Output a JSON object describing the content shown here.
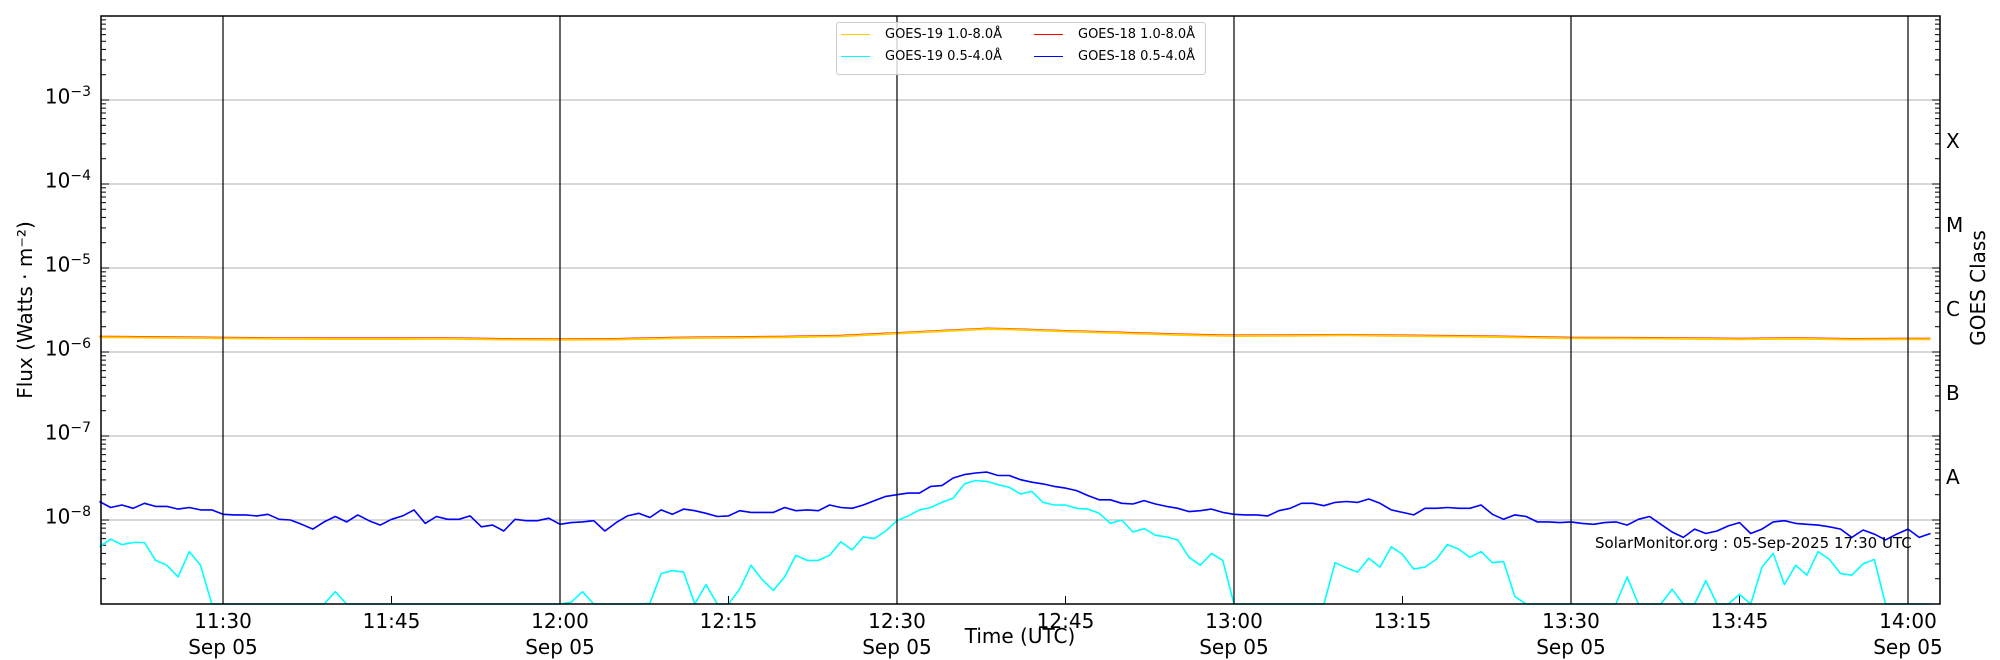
{
  "chart_data": {
    "type": "line",
    "xlabel": "Time (UTC)",
    "ylabel": "Flux (Watts · m⁻²)",
    "y2label": "GOES Class",
    "yscale": "log",
    "ylim": [
      1e-09,
      0.01
    ],
    "xlim": [
      "11:19",
      "14:03"
    ],
    "grid": "horizontal at decades",
    "legend_position": "top-center",
    "y_ticks": [
      {
        "base": "10",
        "exp": "−3",
        "value": 0.001
      },
      {
        "base": "10",
        "exp": "−4",
        "value": 0.0001
      },
      {
        "base": "10",
        "exp": "−5",
        "value": 1e-05
      },
      {
        "base": "10",
        "exp": "−6",
        "value": 1e-06
      },
      {
        "base": "10",
        "exp": "−7",
        "value": 1e-07
      },
      {
        "base": "10",
        "exp": "−8",
        "value": 1e-08
      }
    ],
    "x_ticks": [
      {
        "time": "11:30",
        "label": "11:30",
        "date": "Sep 05",
        "major": true
      },
      {
        "time": "11:45",
        "label": "11:45",
        "date": "",
        "major": false
      },
      {
        "time": "12:00",
        "label": "12:00",
        "date": "Sep 05",
        "major": true
      },
      {
        "time": "12:15",
        "label": "12:15",
        "date": "",
        "major": false
      },
      {
        "time": "12:30",
        "label": "12:30",
        "date": "Sep 05",
        "major": true
      },
      {
        "time": "12:45",
        "label": "12:45",
        "date": "",
        "major": false
      },
      {
        "time": "13:00",
        "label": "13:00",
        "date": "Sep 05",
        "major": true
      },
      {
        "time": "13:15",
        "label": "13:15",
        "date": "",
        "major": false
      },
      {
        "time": "13:30",
        "label": "13:30",
        "date": "Sep 05",
        "major": true
      },
      {
        "time": "13:45",
        "label": "13:45",
        "date": "",
        "major": false
      },
      {
        "time": "14:00",
        "label": "14:00",
        "date": "Sep 05",
        "major": true
      }
    ],
    "goes_classes": [
      {
        "label": "X",
        "from": 0.0001,
        "to": 0.001
      },
      {
        "label": "M",
        "from": 1e-05,
        "to": 0.0001
      },
      {
        "label": "C",
        "from": 1e-06,
        "to": 1e-05
      },
      {
        "label": "B",
        "from": 1e-07,
        "to": 1e-06
      },
      {
        "label": "A",
        "from": 1e-08,
        "to": 1e-07
      }
    ],
    "long_channel_x": [
      "11:19",
      "11:25",
      "11:30",
      "11:35",
      "11:40",
      "11:45",
      "11:50",
      "11:55",
      "12:00",
      "12:05",
      "12:10",
      "12:15",
      "12:20",
      "12:25",
      "12:30",
      "12:35",
      "12:38",
      "12:40",
      "12:45",
      "12:50",
      "12:55",
      "13:00",
      "13:05",
      "13:10",
      "13:15",
      "13:20",
      "13:25",
      "13:30",
      "13:35",
      "13:40",
      "13:45",
      "13:50",
      "13:55",
      "14:00",
      "14:02"
    ],
    "short_channel_x": [
      "11:19",
      "11:20",
      "11:21",
      "11:22",
      "11:23",
      "11:24",
      "11:25",
      "11:26",
      "11:27",
      "11:28",
      "11:29",
      "11:30",
      "11:31",
      "11:32",
      "11:33",
      "11:34",
      "11:35",
      "11:36",
      "11:37",
      "11:38",
      "11:39",
      "11:40",
      "11:41",
      "11:42",
      "11:43",
      "11:44",
      "11:45",
      "11:46",
      "11:47",
      "11:48",
      "11:49",
      "11:50",
      "11:51",
      "11:52",
      "11:53",
      "11:54",
      "11:55",
      "11:56",
      "11:57",
      "11:58",
      "11:59",
      "12:00",
      "12:01",
      "12:02",
      "12:03",
      "12:04",
      "12:05",
      "12:06",
      "12:07",
      "12:08",
      "12:09",
      "12:10",
      "12:11",
      "12:12",
      "12:13",
      "12:14",
      "12:15",
      "12:16",
      "12:17",
      "12:18",
      "12:19",
      "12:20",
      "12:21",
      "12:22",
      "12:23",
      "12:24",
      "12:25",
      "12:26",
      "12:27",
      "12:28",
      "12:29",
      "12:30",
      "12:31",
      "12:32",
      "12:33",
      "12:34",
      "12:35",
      "12:36",
      "12:37",
      "12:38",
      "12:39",
      "12:40",
      "12:41",
      "12:42",
      "12:43",
      "12:44",
      "12:45",
      "12:46",
      "12:47",
      "12:48",
      "12:49",
      "12:50",
      "12:51",
      "12:52",
      "12:53",
      "12:54",
      "12:55",
      "12:56",
      "12:57",
      "12:58",
      "12:59",
      "13:00",
      "13:01",
      "13:02",
      "13:03",
      "13:04",
      "13:05",
      "13:06",
      "13:07",
      "13:08",
      "13:09",
      "13:10",
      "13:11",
      "13:12",
      "13:13",
      "13:14",
      "13:15",
      "13:16",
      "13:17",
      "13:18",
      "13:19",
      "13:20",
      "13:21",
      "13:22",
      "13:23",
      "13:24",
      "13:25",
      "13:26",
      "13:27",
      "13:28",
      "13:29",
      "13:30",
      "13:31",
      "13:32",
      "13:33",
      "13:34",
      "13:35",
      "13:36",
      "13:37",
      "13:38",
      "13:39",
      "13:40",
      "13:41",
      "13:42",
      "13:43",
      "13:44",
      "13:45",
      "13:46",
      "13:47",
      "13:48",
      "13:49",
      "13:50",
      "13:51",
      "13:52",
      "13:53",
      "13:54",
      "13:55",
      "13:56",
      "13:57",
      "13:58",
      "13:59",
      "14:00",
      "14:01",
      "14:02"
    ],
    "series": [
      {
        "name": "GOES-19 1.0-8.0Å",
        "color": "#ffcc00",
        "x_key": "long_channel_x",
        "values": [
          1.5e-06,
          1.48e-06,
          1.46e-06,
          1.44e-06,
          1.43e-06,
          1.43e-06,
          1.44e-06,
          1.41e-06,
          1.4e-06,
          1.41e-06,
          1.46e-06,
          1.48e-06,
          1.5e-06,
          1.54e-06,
          1.66e-06,
          1.8e-06,
          1.88e-06,
          1.86e-06,
          1.76e-06,
          1.68e-06,
          1.6e-06,
          1.55e-06,
          1.56e-06,
          1.58e-06,
          1.55e-06,
          1.53e-06,
          1.5e-06,
          1.46e-06,
          1.45e-06,
          1.44e-06,
          1.42e-06,
          1.44e-06,
          1.41e-06,
          1.42e-06,
          1.42e-06
        ]
      },
      {
        "name": "GOES-18 1.0-8.0Å",
        "color": "#ff0000",
        "x_key": "long_channel_x",
        "values": [
          1.52e-06,
          1.5e-06,
          1.48e-06,
          1.46e-06,
          1.45e-06,
          1.45e-06,
          1.46e-06,
          1.43e-06,
          1.42e-06,
          1.43e-06,
          1.48e-06,
          1.5e-06,
          1.52e-06,
          1.56e-06,
          1.68e-06,
          1.82e-06,
          1.9e-06,
          1.88e-06,
          1.78e-06,
          1.7e-06,
          1.62e-06,
          1.57e-06,
          1.58e-06,
          1.6e-06,
          1.57e-06,
          1.55e-06,
          1.52e-06,
          1.48e-06,
          1.47e-06,
          1.46e-06,
          1.44e-06,
          1.46e-06,
          1.43e-06,
          1.44e-06,
          1.44e-06
        ]
      },
      {
        "name": "GOES-19 0.5-4.0Å",
        "color": "#00ffff",
        "x_key": "short_channel_x",
        "values": [
          4.8e-09,
          5.9e-09,
          5.1e-09,
          5.4e-09,
          5.4e-09,
          3.3e-09,
          2.9e-09,
          2.1e-09,
          4.2e-09,
          2.9e-09,
          1e-09,
          1e-09,
          1e-09,
          1e-09,
          1e-09,
          1e-09,
          1e-09,
          1e-09,
          1e-09,
          1e-09,
          1e-09,
          1.4e-09,
          1e-09,
          1e-09,
          1e-09,
          1e-09,
          1e-09,
          1e-09,
          1e-09,
          1e-09,
          1e-09,
          1e-09,
          1e-09,
          1e-09,
          1e-09,
          1e-09,
          1e-09,
          1e-09,
          1e-09,
          1e-09,
          1e-09,
          1e-09,
          1.05e-09,
          1.4e-09,
          1e-09,
          1e-09,
          1e-09,
          1e-09,
          1e-09,
          1.02e-09,
          2.3e-09,
          2.5e-09,
          2.4e-09,
          1e-09,
          1.7e-09,
          1e-09,
          1e-09,
          1.5e-09,
          2.9e-09,
          1.95e-09,
          1.45e-09,
          2.1e-09,
          3.8e-09,
          3.3e-09,
          3.3e-09,
          3.8e-09,
          5.5e-09,
          4.4e-09,
          6.3e-09,
          6e-09,
          7.4e-09,
          9.8e-09,
          1.12e-08,
          1.32e-08,
          1.41e-08,
          1.62e-08,
          1.82e-08,
          2.69e-08,
          2.95e-08,
          2.88e-08,
          2.63e-08,
          2.45e-08,
          2.04e-08,
          2.19e-08,
          1.62e-08,
          1.51e-08,
          1.51e-08,
          1.38e-08,
          1.35e-08,
          1.2e-08,
          9.1e-09,
          1e-08,
          7.2e-09,
          7.9e-09,
          6.6e-09,
          6.3e-09,
          5.8e-09,
          3.6e-09,
          2.9e-09,
          4e-09,
          3.3e-09,
          1e-09,
          1e-09,
          1e-09,
          1e-09,
          1e-09,
          1e-09,
          1e-09,
          1e-09,
          1e-09,
          3.1e-09,
          2.7e-09,
          2.4e-09,
          3.5e-09,
          2.75e-09,
          4.8e-09,
          3.9e-09,
          2.6e-09,
          2.75e-09,
          3.4e-09,
          5.1e-09,
          4.5e-09,
          3.6e-09,
          4.2e-09,
          3.1e-09,
          3.2e-09,
          1.23e-09,
          1e-09,
          1e-09,
          1e-09,
          1e-09,
          1e-09,
          1e-09,
          1e-09,
          1e-09,
          1e-09,
          2.1e-09,
          1e-09,
          1e-09,
          1e-09,
          1.5e-09,
          1e-09,
          1e-09,
          1.9e-09,
          1e-09,
          1e-09,
          1.3e-09,
          1e-09,
          2.75e-09,
          4e-09,
          1.7e-09,
          2.9e-09,
          2.2e-09,
          4.2e-09,
          3.4e-09,
          2.3e-09,
          2.2e-09,
          3e-09,
          3.4e-09,
          1e-09,
          1e-09,
          1e-09,
          1e-09,
          1e-09
        ]
      },
      {
        "name": "GOES-18 0.5-4.0Å",
        "color": "#0000ff",
        "x_key": "short_channel_x",
        "values": [
          1.66e-08,
          1.41e-08,
          1.51e-08,
          1.38e-08,
          1.58e-08,
          1.45e-08,
          1.45e-08,
          1.35e-08,
          1.41e-08,
          1.32e-08,
          1.32e-08,
          1.17e-08,
          1.15e-08,
          1.15e-08,
          1.12e-08,
          1.17e-08,
          1.02e-08,
          1e-08,
          8.9e-09,
          7.8e-09,
          9.5e-09,
          1.1e-08,
          9.5e-09,
          1.15e-08,
          9.8e-09,
          8.7e-09,
          1.02e-08,
          1.12e-08,
          1.32e-08,
          9.1e-09,
          1.1e-08,
          1.02e-08,
          1.02e-08,
          1.12e-08,
          8.3e-09,
          8.7e-09,
          7.4e-09,
          1.02e-08,
          9.8e-09,
          9.8e-09,
          1.05e-08,
          8.9e-09,
          9.3e-09,
          9.5e-09,
          9.8e-09,
          7.4e-09,
          9.3e-09,
          1.12e-08,
          1.2e-08,
          1.07e-08,
          1.32e-08,
          1.17e-08,
          1.35e-08,
          1.29e-08,
          1.2e-08,
          1.1e-08,
          1.12e-08,
          1.29e-08,
          1.23e-08,
          1.23e-08,
          1.23e-08,
          1.41e-08,
          1.29e-08,
          1.32e-08,
          1.29e-08,
          1.51e-08,
          1.41e-08,
          1.38e-08,
          1.51e-08,
          1.7e-08,
          1.91e-08,
          2e-08,
          2.09e-08,
          2.09e-08,
          2.51e-08,
          2.57e-08,
          3.16e-08,
          3.47e-08,
          3.63e-08,
          3.72e-08,
          3.39e-08,
          3.39e-08,
          3.02e-08,
          2.82e-08,
          2.69e-08,
          2.51e-08,
          2.4e-08,
          2.24e-08,
          1.95e-08,
          1.74e-08,
          1.74e-08,
          1.58e-08,
          1.55e-08,
          1.7e-08,
          1.55e-08,
          1.45e-08,
          1.38e-08,
          1.26e-08,
          1.29e-08,
          1.35e-08,
          1.23e-08,
          1.17e-08,
          1.15e-08,
          1.15e-08,
          1.12e-08,
          1.29e-08,
          1.38e-08,
          1.58e-08,
          1.58e-08,
          1.48e-08,
          1.62e-08,
          1.66e-08,
          1.62e-08,
          1.78e-08,
          1.58e-08,
          1.32e-08,
          1.23e-08,
          1.15e-08,
          1.38e-08,
          1.38e-08,
          1.41e-08,
          1.38e-08,
          1.38e-08,
          1.51e-08,
          1.17e-08,
          1.02e-08,
          1.15e-08,
          1.1e-08,
          9.5e-09,
          9.5e-09,
          9.3e-09,
          9.5e-09,
          9.1e-09,
          8.9e-09,
          9.3e-09,
          9.5e-09,
          8.7e-09,
          1.02e-08,
          1.1e-08,
          8.9e-09,
          7.2e-09,
          6.2e-09,
          7.8e-09,
          6.9e-09,
          7.4e-09,
          8.5e-09,
          9.3e-09,
          6.9e-09,
          7.8e-09,
          9.5e-09,
          9.8e-09,
          9.1e-09,
          8.9e-09,
          8.7e-09,
          8.3e-09,
          7.8e-09,
          6.2e-09,
          7.6e-09,
          6.8e-09,
          5.8e-09,
          6.8e-09,
          7.8e-09,
          6.2e-09,
          6.9e-09
        ]
      }
    ],
    "legend_order": [
      0,
      2,
      1,
      3
    ],
    "annotation": "SolarMonitor.org : 05-Sep-2025 17:30 UTC"
  }
}
